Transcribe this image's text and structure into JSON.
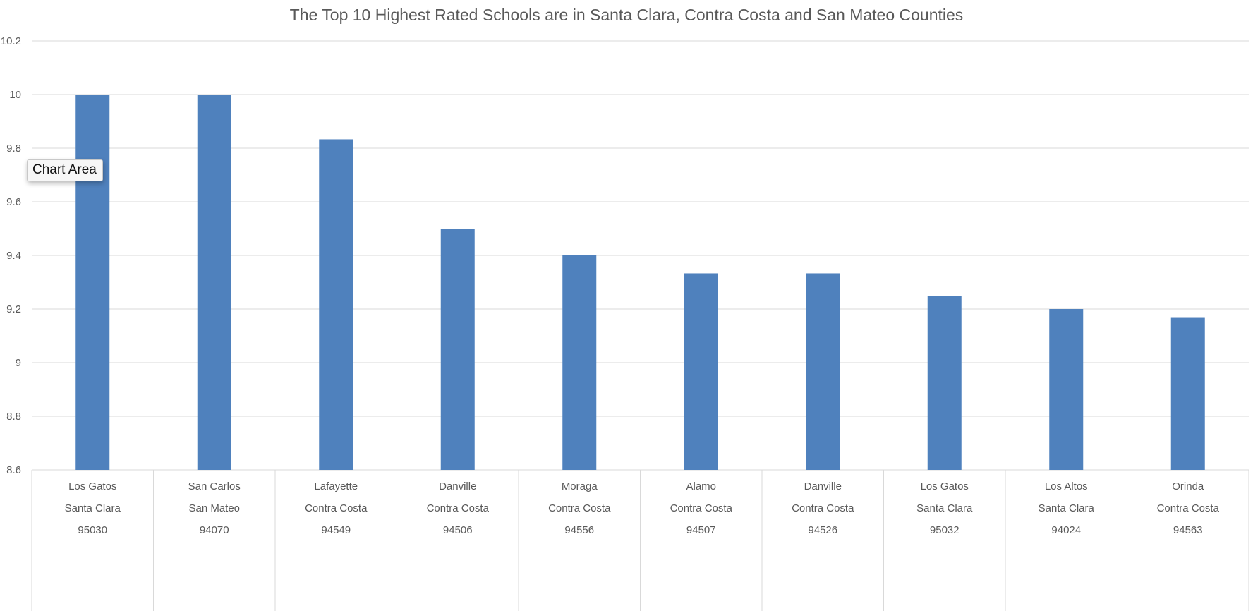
{
  "tooltip": {
    "text": "Chart Area"
  },
  "colors": {
    "bar": "#4f81bd",
    "grid": "#d9d9d9",
    "text": "#595959"
  },
  "chart_data": {
    "type": "bar",
    "title": "The Top 10 Highest Rated Schools are in Santa Clara, Contra Costa and San Mateo Counties",
    "xlabel": "",
    "ylabel": "",
    "ylim": [
      8.6,
      10.2
    ],
    "yticks": [
      "8.6",
      "8.8",
      "9",
      "9.2",
      "9.4",
      "9.6",
      "9.8",
      "10",
      "10.2"
    ],
    "grid": true,
    "legend": "none",
    "categories": [
      {
        "city": "Los Gatos",
        "county": "Santa Clara",
        "zip": "95030"
      },
      {
        "city": "San Carlos",
        "county": "San Mateo",
        "zip": "94070"
      },
      {
        "city": "Lafayette",
        "county": "Contra Costa",
        "zip": "94549"
      },
      {
        "city": "Danville",
        "county": "Contra Costa",
        "zip": "94506"
      },
      {
        "city": "Moraga",
        "county": "Contra Costa",
        "zip": "94556"
      },
      {
        "city": "Alamo",
        "county": "Contra Costa",
        "zip": "94507"
      },
      {
        "city": "Danville",
        "county": "Contra Costa",
        "zip": "94526"
      },
      {
        "city": "Los Gatos",
        "county": "Santa Clara",
        "zip": "95032"
      },
      {
        "city": "Los Altos",
        "county": "Santa Clara",
        "zip": "94024"
      },
      {
        "city": "Orinda",
        "county": "Contra Costa",
        "zip": "94563"
      }
    ],
    "values": [
      10,
      10,
      9.833,
      9.5,
      9.4,
      9.333,
      9.333,
      9.25,
      9.2,
      9.167
    ]
  }
}
